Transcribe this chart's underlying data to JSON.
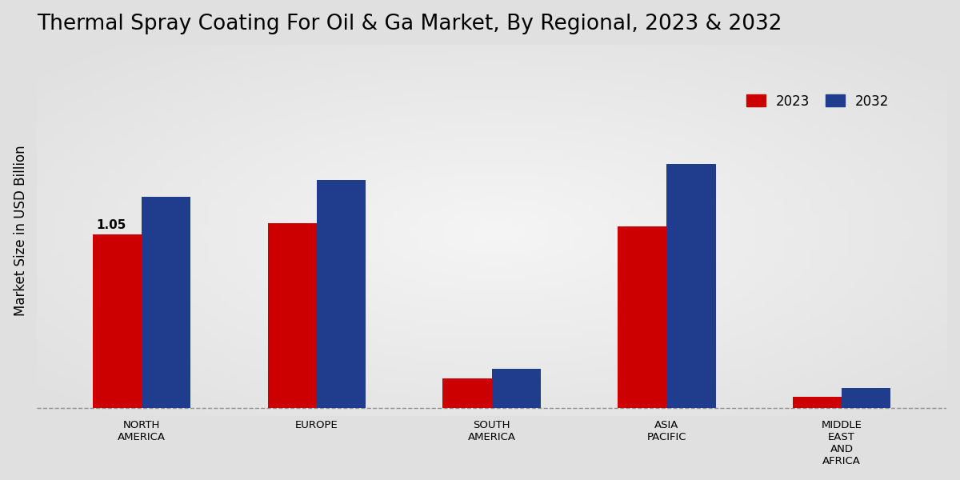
{
  "title": "Thermal Spray Coating For Oil & Ga Market, By Regional, 2023 & 2032",
  "ylabel": "Market Size in USD Billion",
  "categories": [
    "NORTH\nAMERICA",
    "EUROPE",
    "SOUTH\nAMERICA",
    "ASIA\nPACIFIC",
    "MIDDLE\nEAST\nAND\nAFRICA"
  ],
  "values_2023": [
    1.05,
    1.12,
    0.18,
    1.1,
    0.07
  ],
  "values_2032": [
    1.28,
    1.38,
    0.24,
    1.48,
    0.12
  ],
  "color_2023": "#cc0000",
  "color_2032": "#1f3d8c",
  "annotation_value": "1.05",
  "annotation_bar_index": 0,
  "legend_labels": [
    "2023",
    "2032"
  ],
  "bar_width": 0.28,
  "title_fontsize": 19,
  "axis_label_fontsize": 12,
  "tick_fontsize": 9.5,
  "legend_fontsize": 12,
  "annotation_fontsize": 11,
  "ylim": [
    -0.05,
    2.2
  ]
}
